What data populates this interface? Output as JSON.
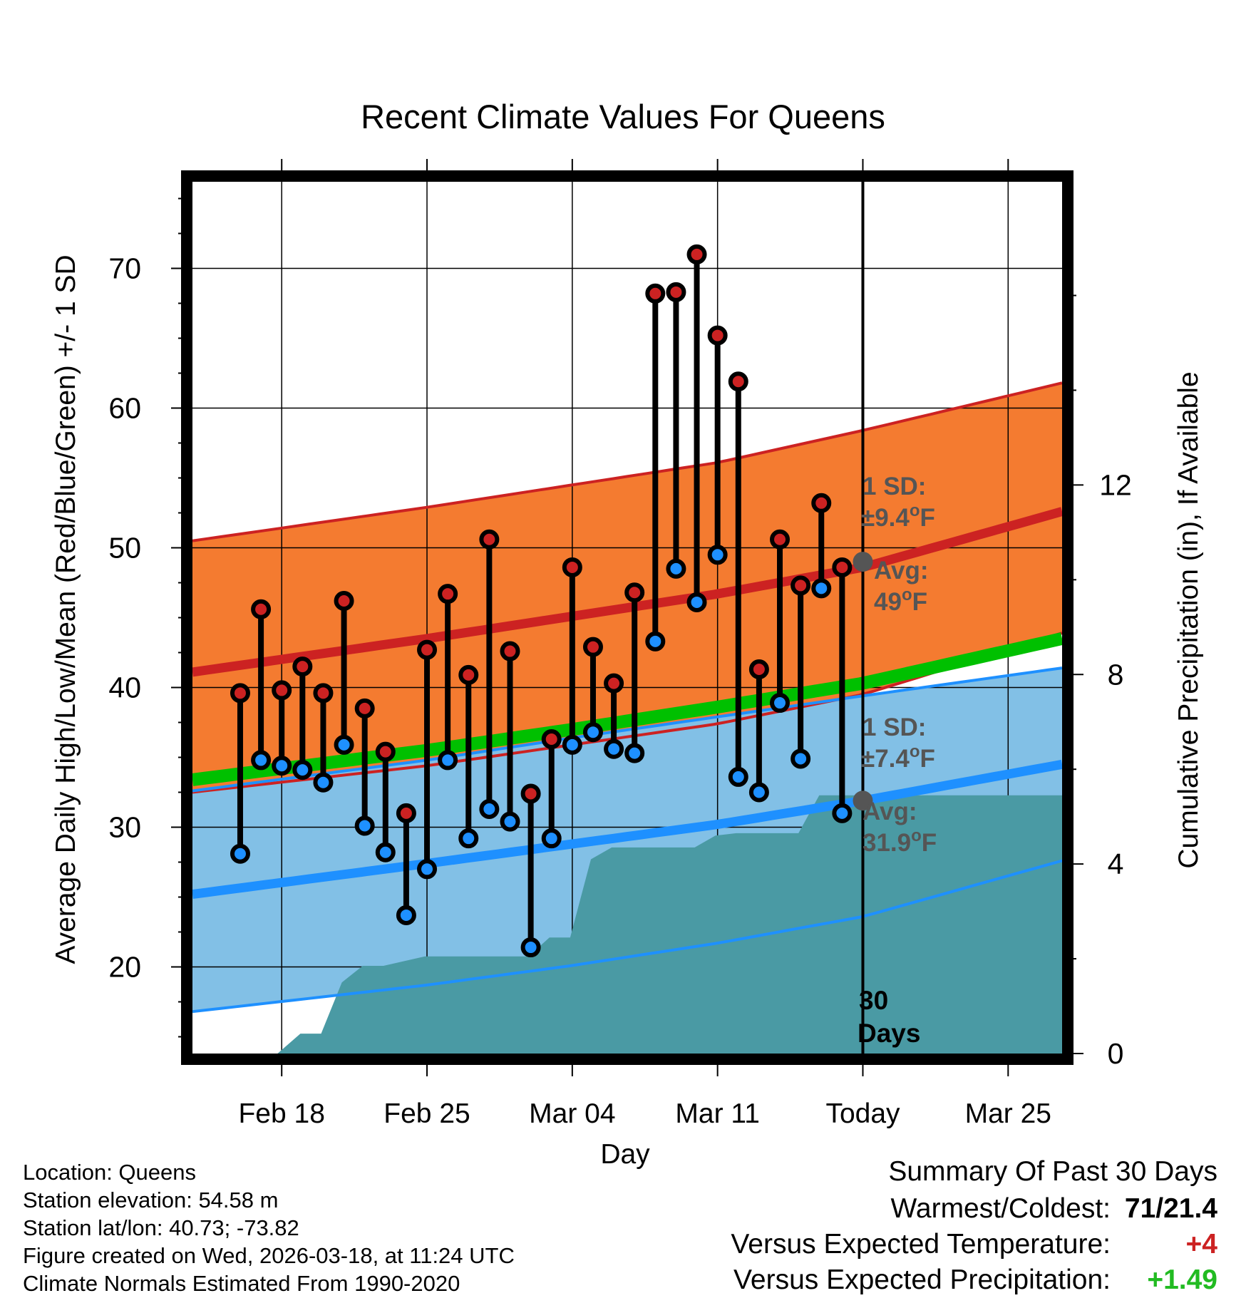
{
  "chart_data": {
    "type": "line",
    "title": "Recent Climate Values For Queens",
    "xlabel": "Day",
    "ylabel_left": "Average Daily High/Low/Mean (Red/Blue/Green) +/- 1 SD",
    "ylabel_right": "Cumulative Precipitation (in), If Available",
    "x_range_days": [
      -32.3,
      9.6
    ],
    "ylim_left": [
      13.8,
      76.2
    ],
    "ylim_right": [
      0,
      18.4
    ],
    "x_ticks": [
      {
        "day": -28,
        "label": "Feb 18"
      },
      {
        "day": -21,
        "label": "Feb 25"
      },
      {
        "day": -14,
        "label": "Mar 04"
      },
      {
        "day": -7,
        "label": "Mar 11"
      },
      {
        "day": 0,
        "label": "Today"
      },
      {
        "day": 7,
        "label": "Mar 25"
      }
    ],
    "y_ticks_left": [
      20,
      30,
      40,
      50,
      60,
      70
    ],
    "y_ticks_right": [
      0,
      4,
      8,
      12
    ],
    "observed": {
      "days": [
        -30,
        -29,
        -28,
        -27,
        -26,
        -25,
        -24,
        -23,
        -22,
        -21,
        -20,
        -19,
        -18,
        -17,
        -16,
        -15,
        -14,
        -13,
        -12,
        -11,
        -10,
        -9,
        -8,
        -7,
        -6,
        -5,
        -4,
        -3,
        -2,
        -1
      ],
      "highs": [
        39.6,
        45.6,
        39.8,
        41.5,
        39.6,
        46.2,
        38.5,
        35.4,
        31.0,
        42.7,
        46.7,
        40.9,
        50.6,
        42.6,
        32.4,
        36.3,
        48.6,
        42.9,
        40.3,
        46.8,
        68.2,
        68.3,
        71.0,
        65.2,
        61.9,
        41.3,
        50.6,
        47.3,
        53.2,
        48.6
      ],
      "lows": [
        28.1,
        34.8,
        34.4,
        34.1,
        33.2,
        35.9,
        30.1,
        28.2,
        23.7,
        27.0,
        34.8,
        29.2,
        31.3,
        30.4,
        21.4,
        29.2,
        35.9,
        36.8,
        35.6,
        35.3,
        43.3,
        48.5,
        46.1,
        49.5,
        33.6,
        32.5,
        38.9,
        34.9,
        47.1,
        31.0
      ]
    },
    "normals": {
      "days": [
        -32.3,
        -21,
        -14,
        -7,
        0,
        9.6
      ],
      "high": [
        41.1,
        43.5,
        45.1,
        46.7,
        48.6,
        52.6
      ],
      "high_sd_upper": [
        50.5,
        52.9,
        54.5,
        56.1,
        58.4,
        61.8
      ],
      "high_sd_lower": [
        32.5,
        34.4,
        35.9,
        37.4,
        39.5,
        43.9
      ],
      "mean": [
        33.4,
        35.5,
        37.0,
        38.6,
        40.3,
        43.5
      ],
      "low": [
        25.2,
        27.4,
        28.8,
        30.2,
        31.9,
        34.5
      ],
      "low_sd_upper": [
        32.6,
        34.8,
        36.4,
        37.9,
        39.4,
        41.4
      ],
      "low_sd_lower": [
        16.8,
        18.7,
        20.1,
        21.7,
        23.6,
        27.6
      ]
    },
    "today_markers": {
      "high_avg": 49,
      "low_avg": 31.9,
      "high_label_1": "1 SD:",
      "high_label_2": "±9.4",
      "high_label_3": "Avg:",
      "high_label_4": "49",
      "low_label_1": "1 SD:",
      "low_label_2": "±7.4",
      "low_label_3": "Avg:",
      "low_label_4": "31.9",
      "degree_sup": "o",
      "unit": "F"
    },
    "precipitation": {
      "days": [
        -28.2,
        -27.1,
        -26.1,
        -25.1,
        -24.1,
        -23.1,
        -22.1,
        -21.1,
        -20.1,
        -19.1,
        -18.1,
        -17.1,
        -16.1,
        -15.1,
        -14.1,
        -13.1,
        -12.1,
        -11.1,
        -10.1,
        -9.1,
        -8.1,
        -7.1,
        -6.1,
        -5.1,
        -4.1,
        -3.1,
        -2.1,
        -1.1,
        0,
        9.6
      ],
      "cumulative_in": [
        0,
        0.42,
        0.42,
        1.5,
        1.85,
        1.85,
        1.95,
        2.05,
        2.05,
        2.05,
        2.05,
        2.05,
        2.05,
        2.45,
        2.45,
        4.1,
        4.35,
        4.35,
        4.35,
        4.35,
        4.35,
        4.6,
        4.65,
        4.65,
        4.65,
        4.65,
        5.45,
        5.45,
        5.45,
        5.45
      ],
      "window_label_1": "30",
      "window_label_2": "Days"
    }
  },
  "info": {
    "location": "Location: Queens",
    "elevation": "Station elevation: 54.58 m",
    "latlon": "Station lat/lon: 40.73; -73.82",
    "created": "Figure created on Wed, 2026-03-18, at 11:24 UTC",
    "normals": "Climate Normals Estimated From 1990-2020"
  },
  "summary": {
    "title": "Summary Of Past 30 Days",
    "warm_cold_label": "Warmest/Coldest:",
    "warm_cold_value": "71/21.4",
    "temp_label": "Versus Expected Temperature:",
    "temp_value": "+4",
    "precip_label": "Versus Expected Precipitation:",
    "precip_value": "+1.49"
  },
  "colors": {
    "high_band": "#f47b30",
    "high_line": "#cc2222",
    "low_band": "#82c0e6",
    "low_line": "#1e90ff",
    "low_band_edge": "#1e90ff",
    "mean_line": "#00c000",
    "precip": "#4a9aa4",
    "label_gray": "#555555",
    "temp_delta": "#cc2222",
    "precip_delta": "#22bb22"
  }
}
